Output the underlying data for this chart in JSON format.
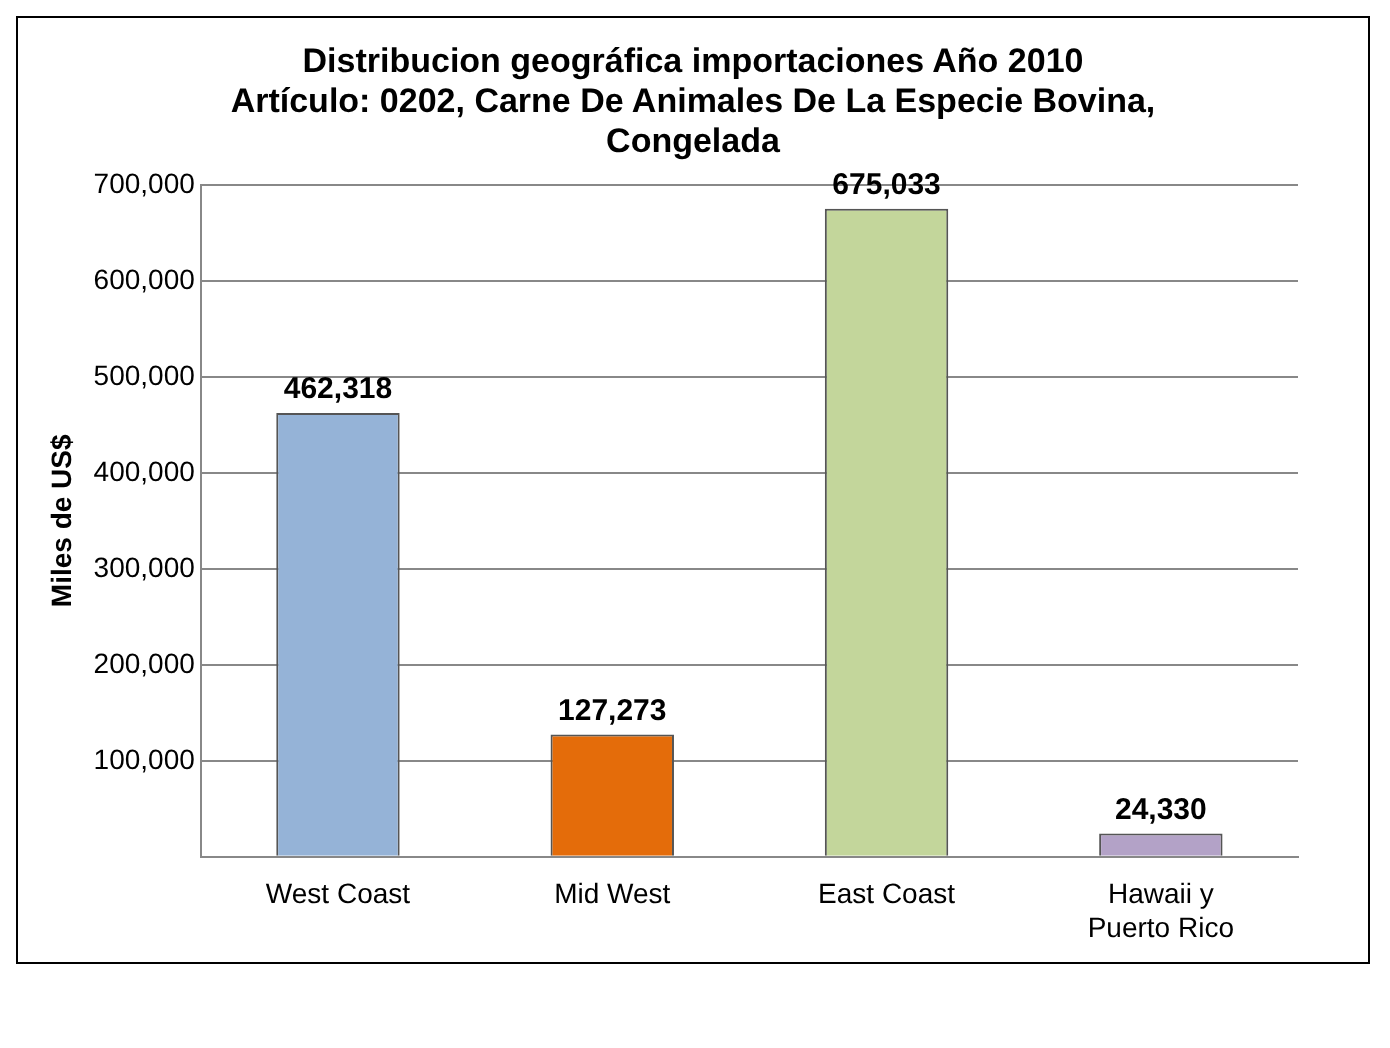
{
  "chart_data": {
    "type": "bar",
    "title": "Distribucion geográfica importaciones Año 2010",
    "subtitle": "Artículo: 0202, Carne De Animales De La Especie Bovina, Congelada",
    "ylabel": "Miles de US$",
    "categories": [
      "West Coast",
      "Mid West",
      "East Coast",
      "Hawaii y Puerto Rico"
    ],
    "values": [
      462318,
      127273,
      675033,
      24330
    ],
    "value_labels": [
      "462,318",
      "127,273",
      "675,033",
      "24,330"
    ],
    "colors": [
      "#95b3d7",
      "#e46c0a",
      "#c3d69b",
      "#b3a2c7"
    ],
    "ylim": [
      0,
      700000
    ],
    "yticks": [
      {
        "value": 0,
        "label": null
      },
      {
        "value": 100000,
        "label": "100,000"
      },
      {
        "value": 200000,
        "label": "200,000"
      },
      {
        "value": 300000,
        "label": "300,000"
      },
      {
        "value": 400000,
        "label": "400,000"
      },
      {
        "value": 500000,
        "label": "500,000"
      },
      {
        "value": 600000,
        "label": "600,000"
      },
      {
        "value": 700000,
        "label": "700,000"
      }
    ],
    "grid": "y"
  }
}
